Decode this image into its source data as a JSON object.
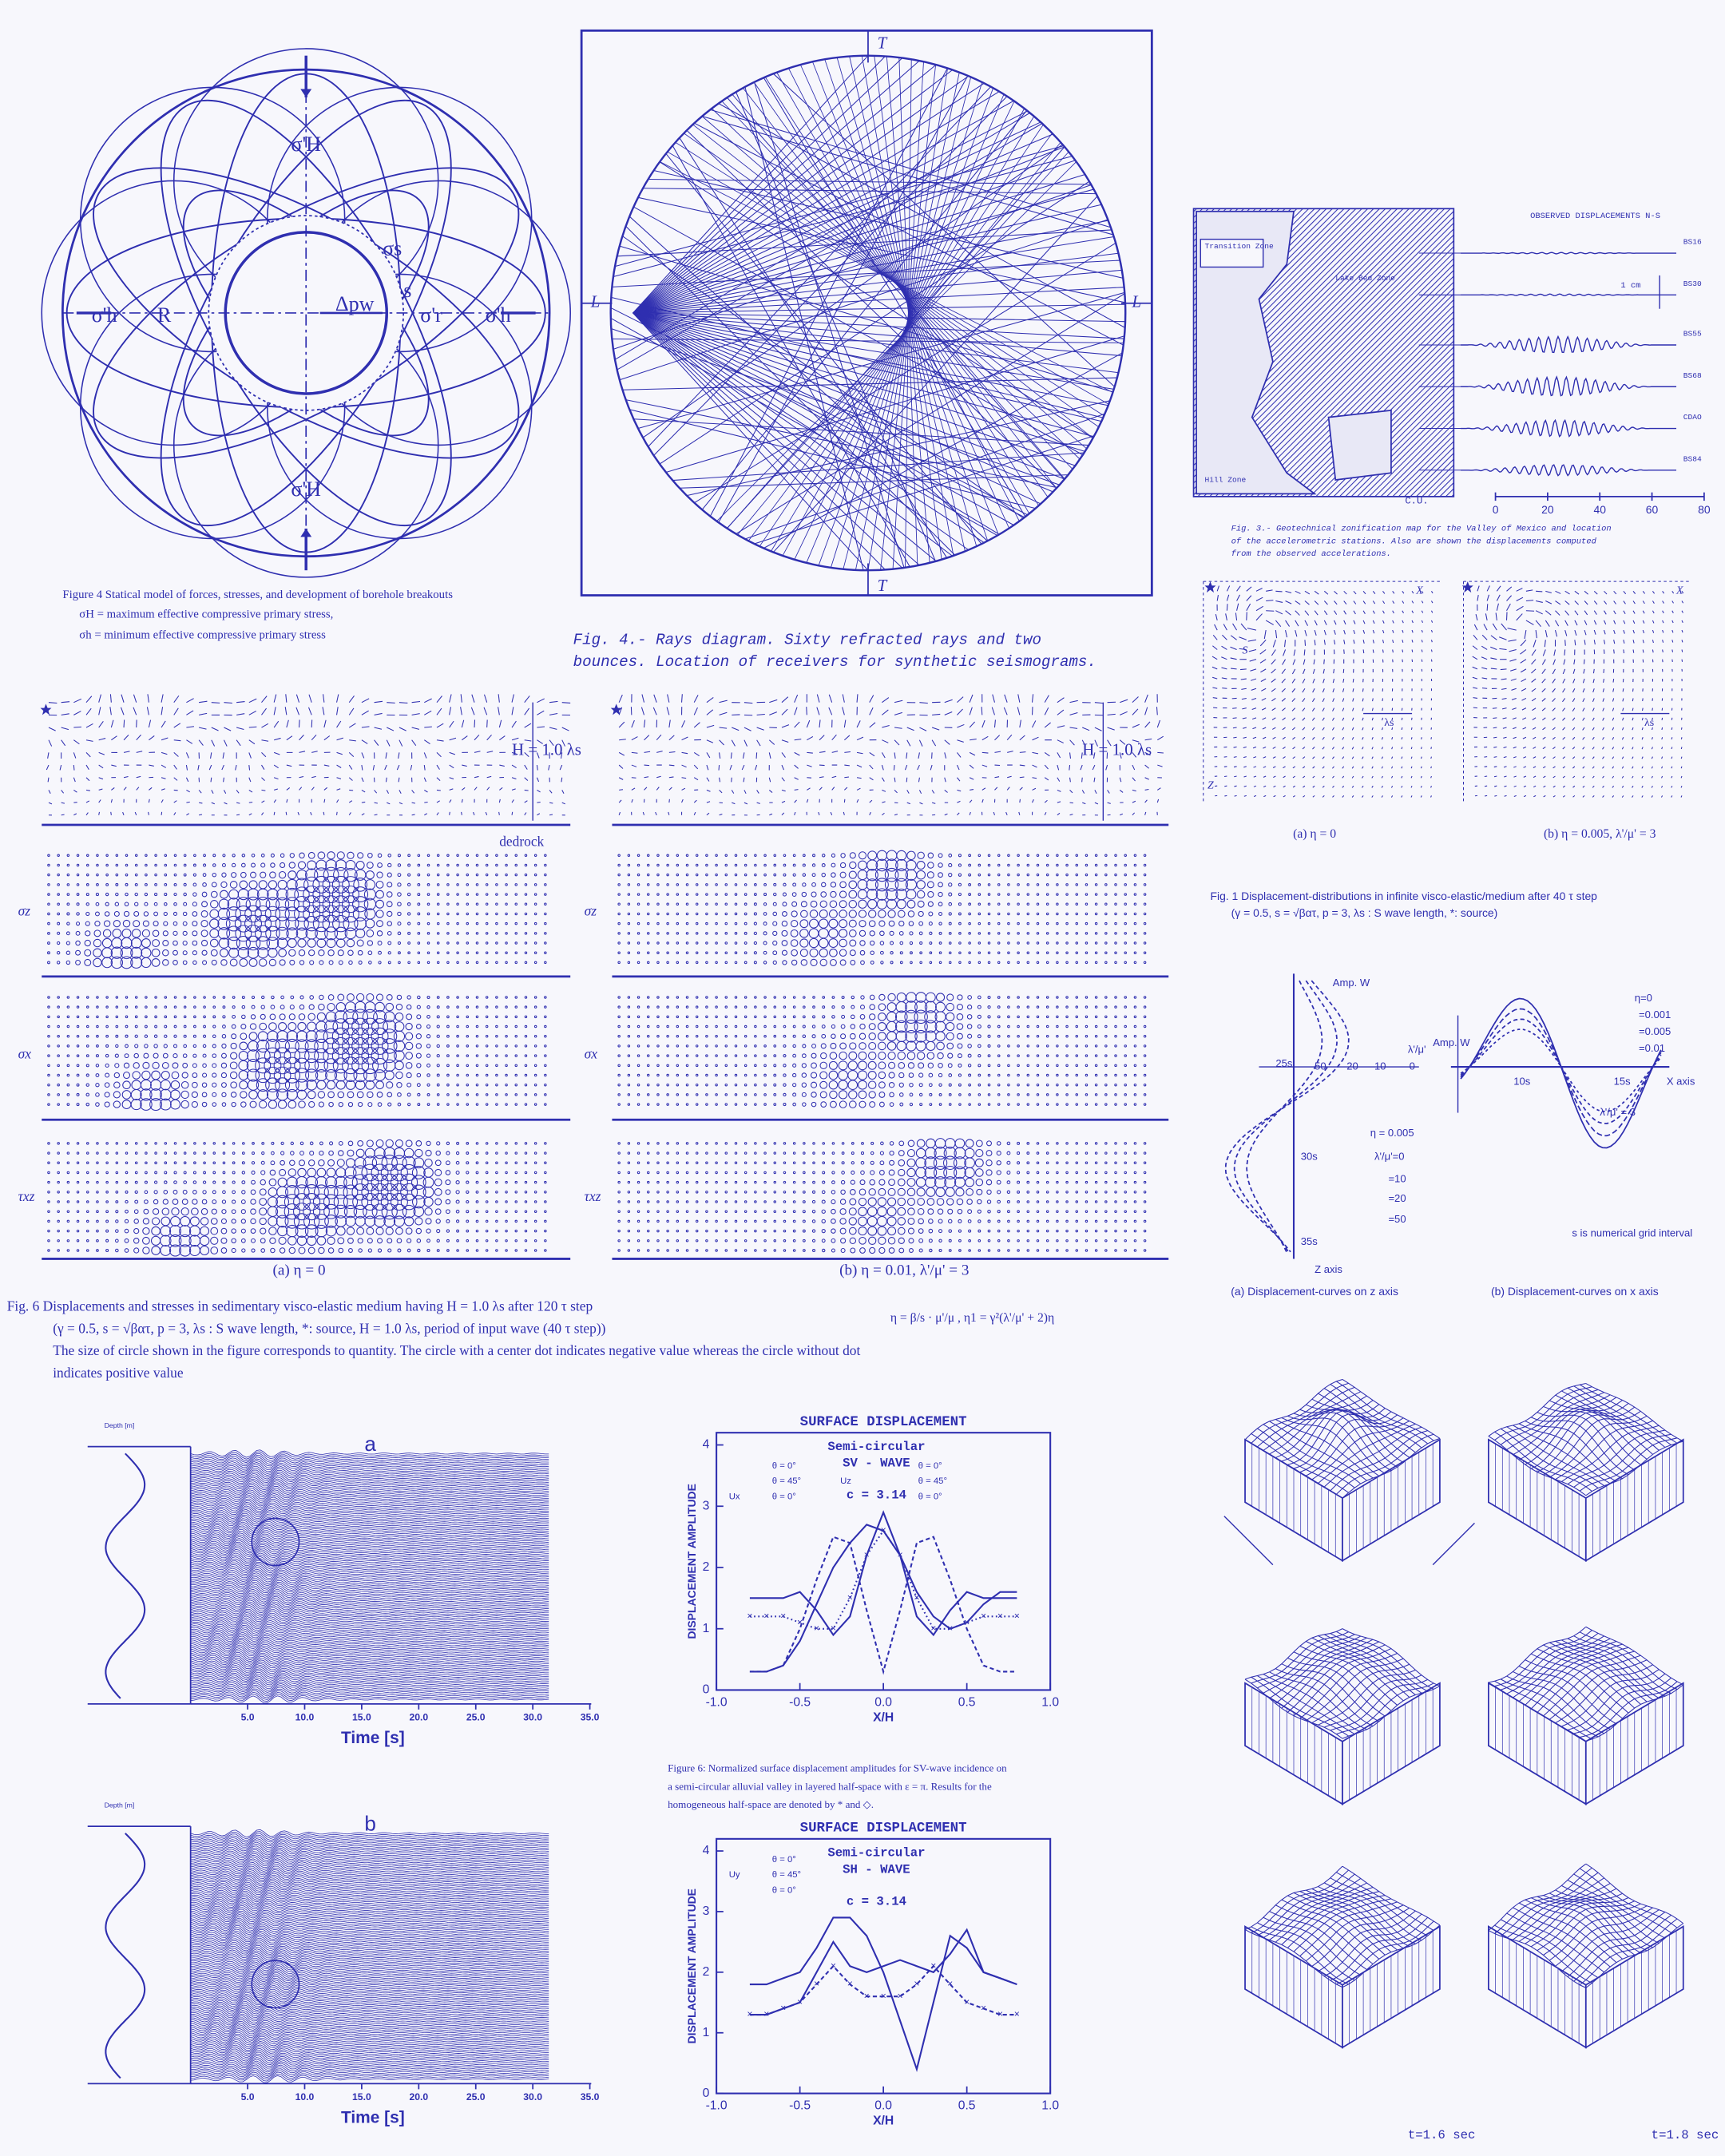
{
  "borehole": {
    "labels": [
      "σ'H",
      "σ'H",
      "σ'h",
      "R",
      "Δpw",
      "σs",
      "s",
      "σ'r",
      "σ'h"
    ],
    "caption": [
      "Figure 4  Statical model of forces, stresses, and development of borehole breakouts",
      "σH = maximum effective compressive primary stress,",
      "σh = minimum effective compressive primary stress"
    ]
  },
  "rays": {
    "labels": [
      "T",
      "L",
      "L",
      "T"
    ],
    "caption": [
      "Fig.  4.-  Rays diagram.  Sixty refracted rays and two",
      "bounces. Location of receivers for synthetic seismograms."
    ]
  },
  "map": {
    "title": "OBSERVED DISPLACEMENTS N-S",
    "zones": [
      "Transition Zone",
      "Lake Bed Zone",
      "Hill Zone"
    ],
    "stations": [
      "BS16",
      "BS30",
      "BS55",
      "BS68",
      "CDAO",
      "BS84"
    ],
    "scale": "1 cm",
    "origin": "C.U.",
    "axis": [
      "0",
      "20",
      "40",
      "60",
      "80"
    ],
    "caption": [
      "Fig. 3.- Geotechnical zonification map for the Valley of Mexico and location",
      "of the accelerometric stations. Also are shown the displacements computed",
      "from the observed accelerations."
    ]
  },
  "fig1": {
    "labels": [
      "X",
      "Z",
      "S",
      "λs",
      "X",
      "λs"
    ],
    "panels": [
      "(a) η = 0",
      "(b)    η = 0.005, λ'/μ' = 3"
    ],
    "caption": [
      "Fig. 1  Displacement-distributions in infinite visco-elastic/medium after 40 τ step",
      "(γ = 0.5, s = √βατ, p = 3, λs : S wave length, *: source)"
    ]
  },
  "curves": {
    "left": [
      "Amp. W",
      "25s",
      "50",
      "20",
      "10",
      "0",
      "λ'/μ'",
      "30s",
      "35s",
      "Z axis",
      "η = 0.005",
      "λ'/μ'=0",
      "=10",
      "=20",
      "=50"
    ],
    "right": [
      "Amp. W",
      "η=0",
      "=0.001",
      "=0.005",
      "=0.01",
      "10s",
      "15s",
      "X axis",
      "λ'/μ' = 3",
      "s is numerical grid interval"
    ],
    "captions": [
      "(a) Displacement-curves on z axis",
      "(b) Displacement-curves on x axis"
    ]
  },
  "fig6": {
    "h_labels": [
      "H = 1.0 λs",
      "H = 1.0 λs"
    ],
    "bedrock": "dedrock",
    "rows": [
      "σz",
      "σx",
      "τxz"
    ],
    "panels": [
      "(a) η = 0",
      "(b) η = 0.01, λ'/μ' = 3"
    ],
    "formula": "η = β/s · μ'/μ ,   η1 = γ²(λ'/μ' + 2)η",
    "caption": [
      "Fig. 6  Displacements and stresses in sedimentary visco-elastic medium  having  H = 1.0 λs after 120 τ step",
      "(γ = 0.5, s = √βατ, p = 3, λs : S wave length, *: source, H = 1.0 λs, period of input wave (40 τ step))",
      "The size of circle shown in the figure corresponds to quantity.  The circle with a center dot indicates negative value whereas the circle without dot",
      "indicates positive value"
    ]
  },
  "seismograms": {
    "depth": "Depth [m]",
    "panels": [
      "a",
      "b"
    ],
    "xlabel": "Time  [s]",
    "ticks": [
      "5.0",
      "10.0",
      "15.0",
      "20.0",
      "25.0",
      "30.0",
      "35.0"
    ]
  },
  "surface": [
    {
      "title": "SURFACE DISPLACEMENT",
      "shape": "Semi-circular",
      "wave": "SV - WAVE",
      "c": "c = 3.14",
      "legend": [
        "θ = 0°",
        "θ = 45°",
        "Ux",
        "θ = 0°",
        "θ = 0°",
        "θ = 45°",
        "Uz",
        "θ = 0°"
      ],
      "ylabel": "DISPLACEMENT  AMPLITUDE",
      "xlabel": "X/H",
      "xlim": [
        -1,
        1
      ],
      "ylim": [
        0,
        4.2
      ],
      "yticks": [
        0,
        1,
        2,
        3,
        4
      ],
      "xticks": [
        {
          "value": -1,
          "label": "-1.0"
        },
        {
          "value": -0.5,
          "label": "-0.5"
        },
        {
          "value": 0,
          "label": "0.0"
        },
        {
          "value": 0.5,
          "label": "0.5"
        },
        {
          "value": 1,
          "label": "1.0"
        }
      ],
      "x": [
        -0.8,
        -0.7,
        -0.6,
        -0.5,
        -0.4,
        -0.3,
        -0.2,
        -0.1,
        0,
        0.1,
        0.2,
        0.3,
        0.4,
        0.5,
        0.6,
        0.7,
        0.8
      ],
      "curves": [
        [
          1.5,
          1.5,
          1.5,
          1.6,
          1.3,
          0.9,
          1.2,
          2.2,
          2.9,
          2.2,
          1.2,
          0.9,
          1.3,
          1.6,
          1.5,
          1.5,
          1.5
        ],
        [
          0.3,
          0.3,
          0.4,
          0.8,
          1.4,
          2.0,
          2.4,
          2.7,
          2.6,
          2.2,
          1.6,
          1.2,
          1.0,
          1.1,
          1.4,
          1.6,
          1.6
        ],
        [
          0.3,
          0.3,
          0.4,
          1.0,
          1.8,
          2.5,
          2.4,
          1.3,
          0.3,
          1.3,
          2.4,
          2.5,
          1.8,
          1.0,
          0.4,
          0.3,
          0.3
        ],
        [
          1.2,
          1.2,
          1.2,
          1.1,
          1.0,
          1.0,
          1.5,
          2.2,
          2.6,
          2.2,
          1.5,
          1.0,
          1.0,
          1.1,
          1.2,
          1.2,
          1.2
        ]
      ]
    },
    {
      "title": "SURFACE DISPLACEMENT",
      "shape": "Semi-circular",
      "wave": "SH - WAVE",
      "c": "c = 3.14",
      "legend": [
        "θ = 0°",
        "θ = 45°",
        "Uy",
        "θ = 0°"
      ],
      "ylabel": "DISPLACEMENT  AMPLITUDE",
      "xlabel": "X/H",
      "xlim": [
        -1,
        1
      ],
      "ylim": [
        0,
        4.2
      ],
      "yticks": [
        0,
        1,
        2,
        3,
        4
      ],
      "xticks": [
        {
          "value": -1,
          "label": "-1.0"
        },
        {
          "value": -0.5,
          "label": "-0.5"
        },
        {
          "value": 0,
          "label": "0.0"
        },
        {
          "value": 0.5,
          "label": "0.5"
        },
        {
          "value": 1,
          "label": "1.0"
        }
      ],
      "x": [
        -0.8,
        -0.7,
        -0.6,
        -0.5,
        -0.4,
        -0.3,
        -0.2,
        -0.1,
        0,
        0.1,
        0.2,
        0.3,
        0.4,
        0.5,
        0.6,
        0.7,
        0.8
      ],
      "curves": [
        [
          1.8,
          1.8,
          1.9,
          2.0,
          2.4,
          2.9,
          2.9,
          2.6,
          2.0,
          1.2,
          0.4,
          1.5,
          2.6,
          2.4,
          2.0,
          1.9,
          1.8
        ],
        [
          1.3,
          1.3,
          1.4,
          1.5,
          2.0,
          2.5,
          2.1,
          2.0,
          2.1,
          2.2,
          2.1,
          2.0,
          2.3,
          2.7,
          2.0,
          1.9,
          1.8
        ],
        [
          1.3,
          1.3,
          1.4,
          1.5,
          1.8,
          2.1,
          1.8,
          1.6,
          1.6,
          1.6,
          1.8,
          2.1,
          1.8,
          1.5,
          1.4,
          1.3,
          1.3
        ]
      ]
    }
  ],
  "surface_caption": [
    "Figure 6: Normalized surface displacement amplitudes for SV-wave incidence on",
    "a semi-circular alluvial valley in layered half-space with ε = π.  Results for the",
    "homogeneous half-space are denoted by * and ◇."
  ],
  "blocks": {
    "times": [
      "t=1.6 sec",
      "t=1.8 sec"
    ]
  }
}
